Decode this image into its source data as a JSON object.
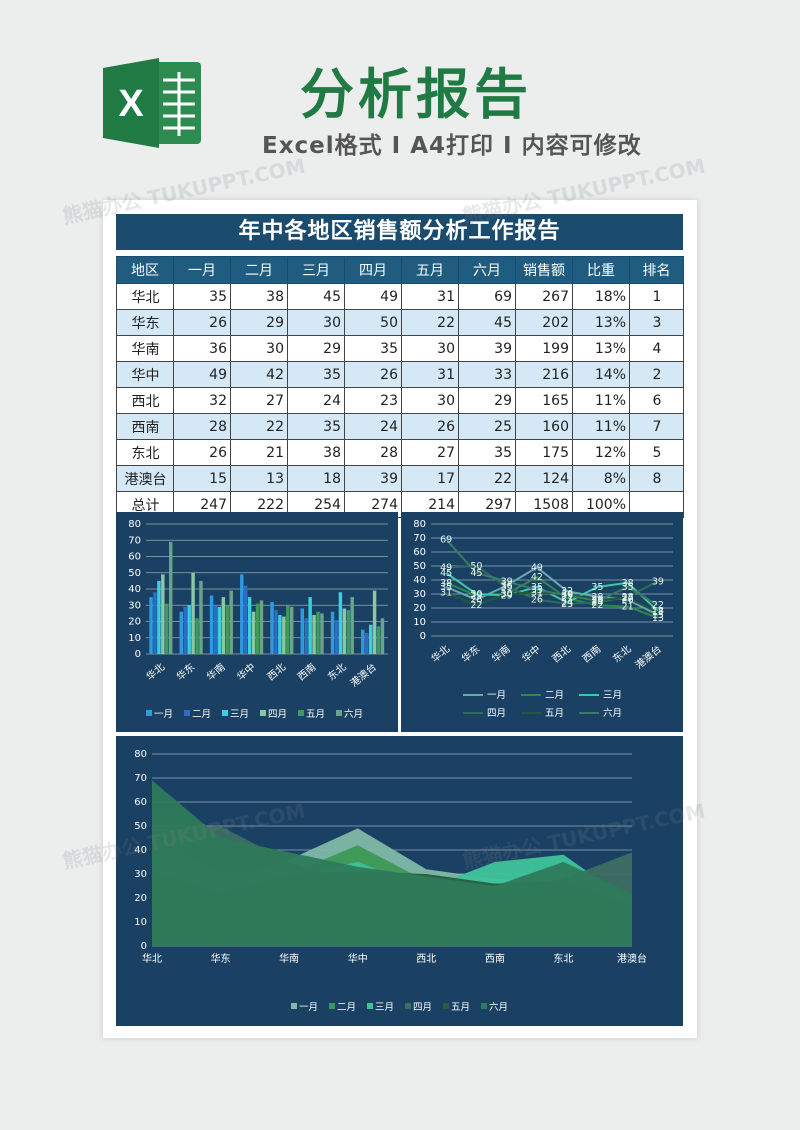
{
  "header": {
    "logo_letter": "X",
    "title": "分析报告",
    "subtitle": "Excel格式 Ⅰ A4打印 Ⅰ 内容可修改"
  },
  "report": {
    "title": "年中各地区销售额分析工作报告",
    "columns": [
      "地区",
      "一月",
      "二月",
      "三月",
      "四月",
      "五月",
      "六月",
      "销售额",
      "比重",
      "排名"
    ],
    "rows": [
      [
        "华北",
        "35",
        "38",
        "45",
        "49",
        "31",
        "69",
        "267",
        "18%",
        "1"
      ],
      [
        "华东",
        "26",
        "29",
        "30",
        "50",
        "22",
        "45",
        "202",
        "13%",
        "3"
      ],
      [
        "华南",
        "36",
        "30",
        "29",
        "35",
        "30",
        "39",
        "199",
        "13%",
        "4"
      ],
      [
        "华中",
        "49",
        "42",
        "35",
        "26",
        "31",
        "33",
        "216",
        "14%",
        "2"
      ],
      [
        "西北",
        "32",
        "27",
        "24",
        "23",
        "30",
        "29",
        "165",
        "11%",
        "6"
      ],
      [
        "西南",
        "28",
        "22",
        "35",
        "24",
        "26",
        "25",
        "160",
        "11%",
        "7"
      ],
      [
        "东北",
        "26",
        "21",
        "38",
        "28",
        "27",
        "35",
        "175",
        "12%",
        "5"
      ],
      [
        "港澳台",
        "15",
        "13",
        "18",
        "39",
        "17",
        "22",
        "124",
        "8%",
        "8"
      ],
      [
        "总计",
        "247",
        "222",
        "254",
        "274",
        "214",
        "297",
        "1508",
        "100%",
        ""
      ]
    ]
  },
  "watermark": "熊猫办公 TUKUPPT.COM",
  "chart_data": [
    {
      "type": "bar",
      "categories": [
        "华北",
        "华东",
        "华南",
        "华中",
        "西北",
        "西南",
        "东北",
        "港澳台"
      ],
      "ylim": [
        0,
        80
      ],
      "yticks": [
        0,
        10,
        20,
        30,
        40,
        50,
        60,
        70,
        80
      ],
      "legend": "bottom",
      "series": [
        {
          "name": "一月",
          "color": "#2e9be0",
          "values": [
            35,
            26,
            36,
            49,
            32,
            28,
            26,
            15
          ]
        },
        {
          "name": "二月",
          "color": "#2a6fc4",
          "values": [
            38,
            29,
            30,
            42,
            27,
            22,
            21,
            13
          ]
        },
        {
          "name": "三月",
          "color": "#3bd0e0",
          "values": [
            45,
            30,
            29,
            35,
            24,
            35,
            38,
            18
          ]
        },
        {
          "name": "四月",
          "color": "#8cc7a4",
          "values": [
            49,
            50,
            35,
            26,
            23,
            24,
            28,
            39
          ]
        },
        {
          "name": "五月",
          "color": "#3e9b5c",
          "values": [
            31,
            22,
            30,
            31,
            30,
            26,
            27,
            17
          ]
        },
        {
          "name": "六月",
          "color": "#6aa58a",
          "values": [
            69,
            45,
            39,
            33,
            29,
            25,
            35,
            22
          ]
        }
      ]
    },
    {
      "type": "line",
      "categories": [
        "华北",
        "华东",
        "华南",
        "华中",
        "西北",
        "西南",
        "东北",
        "港澳台"
      ],
      "ylim": [
        0,
        80
      ],
      "yticks": [
        0,
        10,
        20,
        30,
        40,
        50,
        60,
        70,
        80
      ],
      "legend": "bottom",
      "series": [
        {
          "name": "一月",
          "color": "#6aa8b0",
          "values": [
            35,
            26,
            36,
            49,
            32,
            28,
            26,
            15
          ]
        },
        {
          "name": "二月",
          "color": "#2e8a4c",
          "values": [
            38,
            29,
            30,
            42,
            27,
            22,
            21,
            13
          ]
        },
        {
          "name": "三月",
          "color": "#3cc8a0",
          "values": [
            45,
            30,
            29,
            35,
            24,
            35,
            38,
            18
          ]
        },
        {
          "name": "四月",
          "color": "#2f6b5a",
          "values": [
            49,
            50,
            35,
            26,
            23,
            24,
            28,
            39
          ]
        },
        {
          "name": "五月",
          "color": "#1f5a3a",
          "values": [
            31,
            22,
            30,
            31,
            30,
            26,
            27,
            17
          ]
        },
        {
          "name": "六月",
          "color": "#3a7a66",
          "values": [
            69,
            45,
            39,
            33,
            29,
            25,
            35,
            22
          ]
        }
      ]
    },
    {
      "type": "area",
      "categories": [
        "华北",
        "华东",
        "华南",
        "华中",
        "西北",
        "西南",
        "东北",
        "港澳台"
      ],
      "ylim": [
        0,
        80
      ],
      "yticks": [
        0,
        10,
        20,
        30,
        40,
        50,
        60,
        70,
        80
      ],
      "legend": "bottom",
      "series": [
        {
          "name": "一月",
          "color": "#7fb8a8",
          "values": [
            35,
            26,
            36,
            49,
            32,
            28,
            26,
            15
          ]
        },
        {
          "name": "二月",
          "color": "#3d9a56",
          "values": [
            38,
            29,
            30,
            42,
            27,
            22,
            21,
            13
          ]
        },
        {
          "name": "三月",
          "color": "#3ec39a",
          "values": [
            45,
            30,
            29,
            35,
            24,
            35,
            38,
            18
          ]
        },
        {
          "name": "四月",
          "color": "#3d6e62",
          "values": [
            49,
            50,
            35,
            26,
            23,
            24,
            28,
            39
          ]
        },
        {
          "name": "五月",
          "color": "#24603e",
          "values": [
            31,
            22,
            30,
            31,
            30,
            26,
            27,
            17
          ]
        },
        {
          "name": "六月",
          "color": "#2e7a5a",
          "values": [
            69,
            45,
            39,
            33,
            29,
            25,
            35,
            22
          ]
        }
      ]
    }
  ]
}
